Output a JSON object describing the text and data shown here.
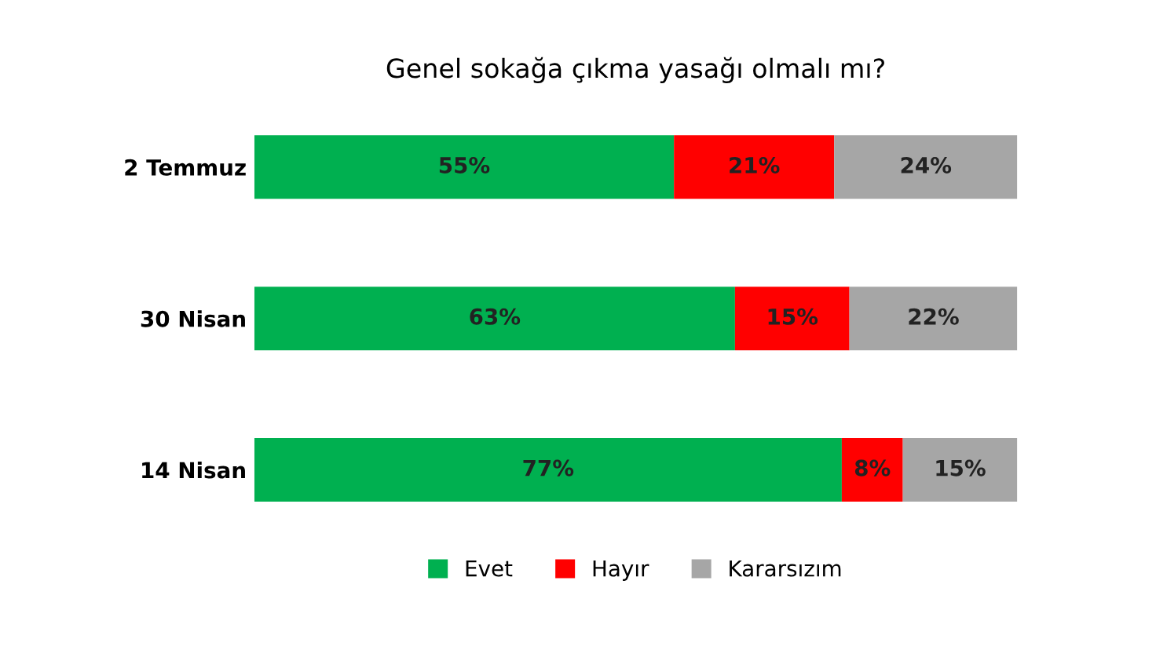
{
  "chart_data": {
    "type": "bar",
    "orientation": "horizontal",
    "stacked": true,
    "title": "Genel sokağa çıkma yasağı olmalı mı?",
    "categories": [
      "2 Temmuz",
      "30 Nisan",
      "14 Nisan"
    ],
    "series": [
      {
        "name": "Evet",
        "color": "#00b050",
        "values": [
          55,
          63,
          77
        ],
        "value_labels": [
          "55%",
          "63%",
          "77%"
        ]
      },
      {
        "name": "Hayır",
        "color": "#ff0000",
        "values": [
          21,
          15,
          8
        ],
        "value_labels": [
          "21%",
          "15%",
          "8%"
        ]
      },
      {
        "name": "Kararsızım",
        "color": "#a6a6a6",
        "values": [
          24,
          22,
          15
        ],
        "value_labels": [
          "24%",
          "22%",
          "15%"
        ]
      }
    ],
    "xlim": [
      0,
      100
    ],
    "tick_labels": "y",
    "grid": false,
    "legend": "bottom"
  }
}
